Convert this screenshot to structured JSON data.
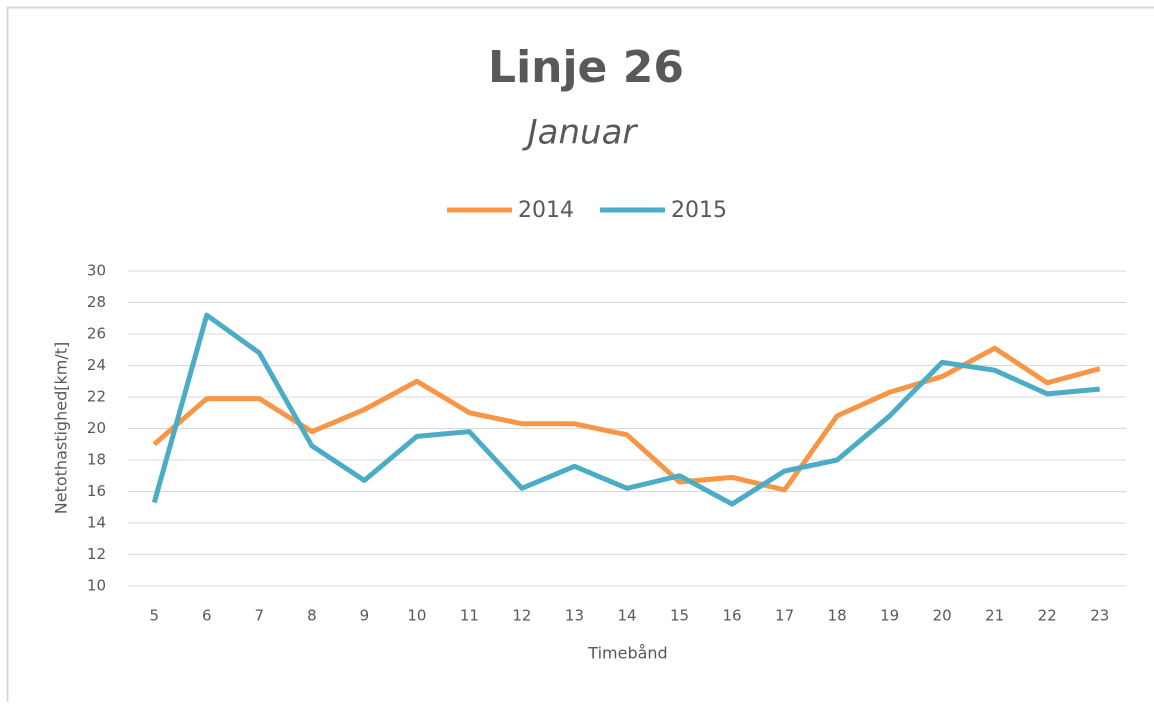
{
  "chart_data": {
    "type": "line",
    "title": "Linje 26",
    "subtitle": "Januar",
    "x_label": "Timebånd",
    "y_label": "Netothastighed[km/t]",
    "categories": [
      5,
      6,
      7,
      8,
      9,
      10,
      11,
      12,
      13,
      14,
      15,
      16,
      17,
      18,
      19,
      20,
      21,
      22,
      23
    ],
    "series": [
      {
        "name": "2014",
        "color": "#f79646",
        "values": [
          19.0,
          21.9,
          21.9,
          19.8,
          21.2,
          23.0,
          21.0,
          20.3,
          20.3,
          19.6,
          16.6,
          16.9,
          16.1,
          20.8,
          22.3,
          23.3,
          25.1,
          22.9,
          23.8
        ]
      },
      {
        "name": "2015",
        "color": "#4bacc6",
        "values": [
          15.3,
          27.2,
          24.8,
          18.9,
          16.7,
          19.5,
          19.8,
          16.2,
          17.6,
          16.2,
          17.0,
          15.2,
          17.3,
          18.0,
          20.8,
          24.2,
          23.7,
          22.2,
          22.5
        ]
      }
    ],
    "ylim": [
      10,
      30
    ],
    "yticks": [
      10,
      12,
      14,
      16,
      18,
      20,
      22,
      24,
      26,
      28,
      30
    ],
    "grid": true,
    "legend": "top"
  }
}
